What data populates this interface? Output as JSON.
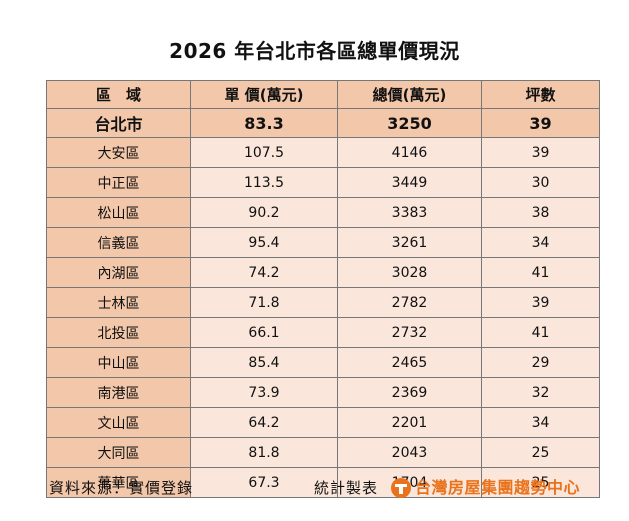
{
  "title": "2026 年台北市各區總單價現況",
  "table": {
    "headers": [
      "區　域",
      "單 價(萬元)",
      "總價(萬元)",
      "坪數"
    ],
    "summary": {
      "name": "台北市",
      "unit_price": "83.3",
      "total_price": "3250",
      "area": "39"
    },
    "rows": [
      {
        "name": "大安區",
        "unit_price": "107.5",
        "total_price": "4146",
        "area": "39"
      },
      {
        "name": "中正區",
        "unit_price": "113.5",
        "total_price": "3449",
        "area": "30"
      },
      {
        "name": "松山區",
        "unit_price": "90.2",
        "total_price": "3383",
        "area": "38"
      },
      {
        "name": "信義區",
        "unit_price": "95.4",
        "total_price": "3261",
        "area": "34"
      },
      {
        "name": "內湖區",
        "unit_price": "74.2",
        "total_price": "3028",
        "area": "41"
      },
      {
        "name": "士林區",
        "unit_price": "71.8",
        "total_price": "2782",
        "area": "39"
      },
      {
        "name": "北投區",
        "unit_price": "66.1",
        "total_price": "2732",
        "area": "41"
      },
      {
        "name": "中山區",
        "unit_price": "85.4",
        "total_price": "2465",
        "area": "29"
      },
      {
        "name": "南港區",
        "unit_price": "73.9",
        "total_price": "2369",
        "area": "32"
      },
      {
        "name": "文山區",
        "unit_price": "64.2",
        "total_price": "2201",
        "area": "34"
      },
      {
        "name": "大同區",
        "unit_price": "81.8",
        "total_price": "2043",
        "area": "25"
      },
      {
        "name": "萬華區",
        "unit_price": "67.3",
        "total_price": "1704",
        "area": "25"
      }
    ]
  },
  "footer": {
    "source": "資料來源：實價登錄",
    "made_by": "統計製表",
    "brand": "台灣房屋集團趨勢中心"
  },
  "colors": {
    "header_bg": "#f3c7a9",
    "row_bg": "#fbe6db",
    "brand_orange": "#e8731c"
  },
  "icons": {
    "brand_logo": "taiwan-realty-logo-icon"
  }
}
